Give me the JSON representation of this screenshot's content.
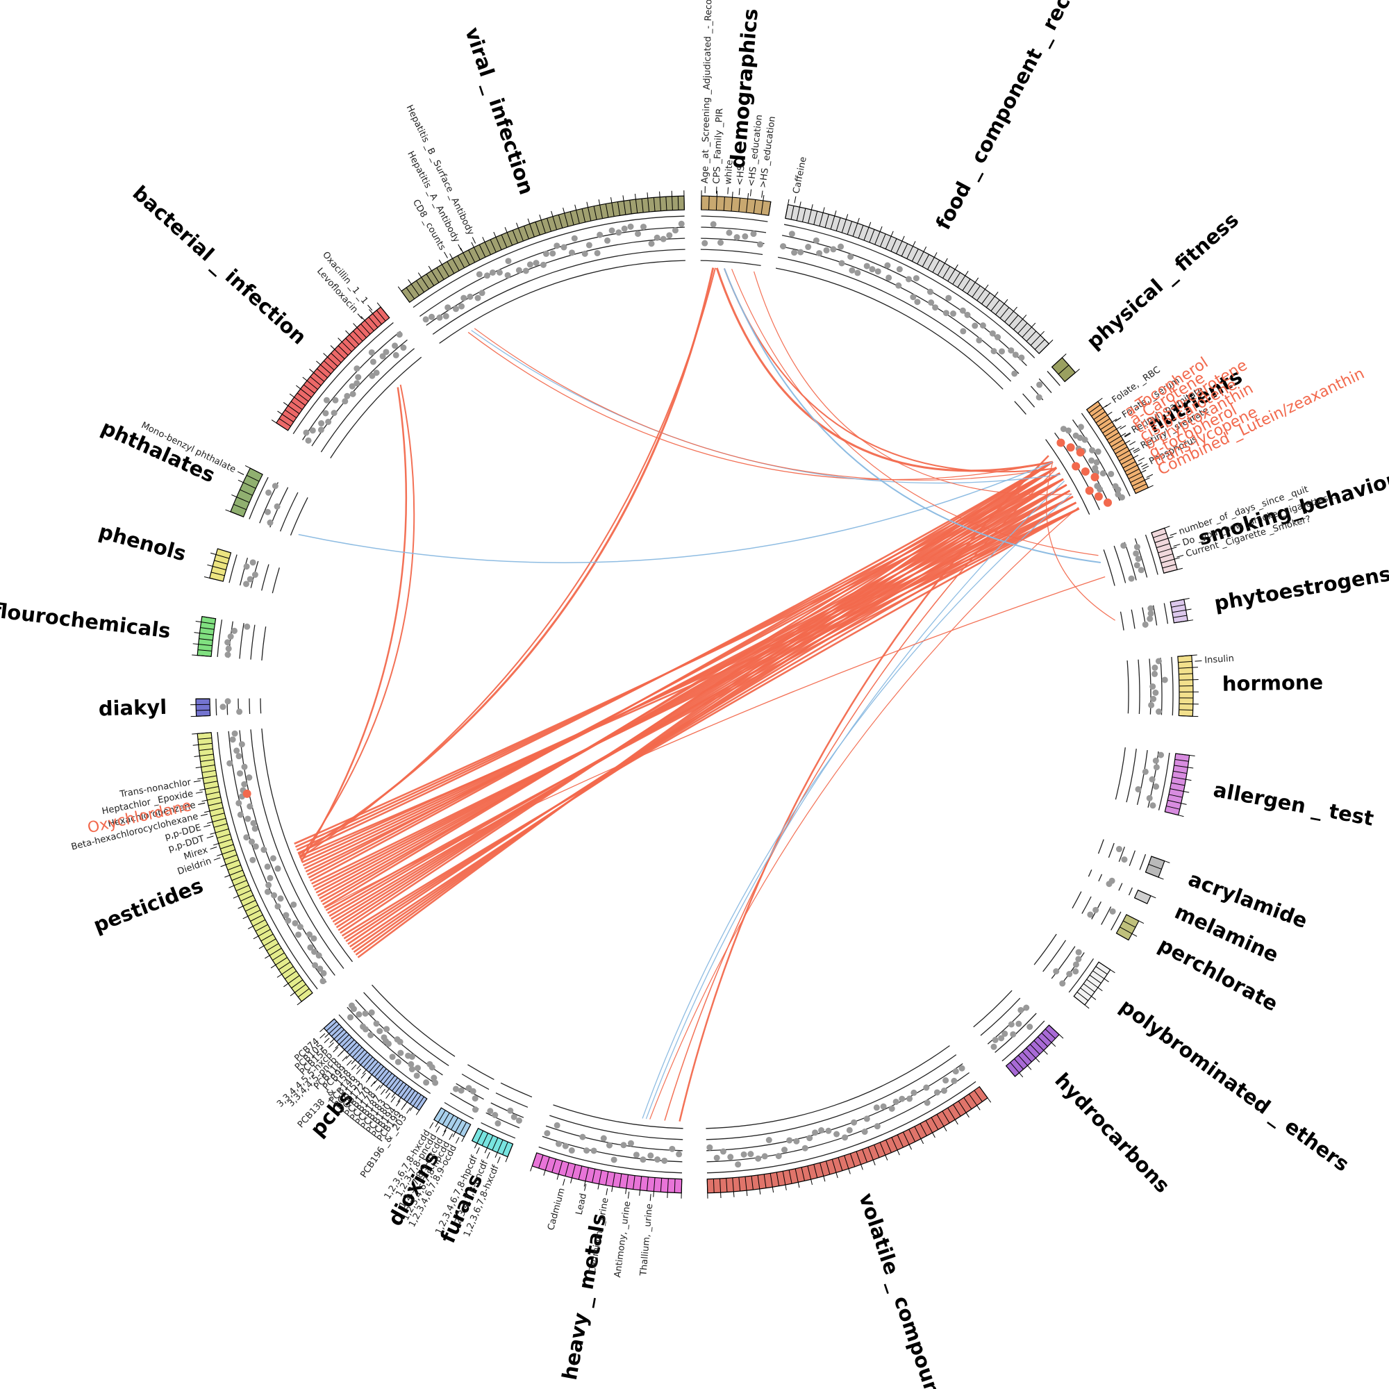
{
  "categories": [
    {
      "name": "demographics",
      "color": "#c8a870"
    },
    {
      "name": "food _ component _ recall",
      "color": "#dcdcdc"
    },
    {
      "name": "physical _ fitness",
      "color": "#9aa060"
    },
    {
      "name": "nutrients",
      "color": "#f0b070"
    },
    {
      "name": "smoking_behavior",
      "color": "#f0d8dc"
    },
    {
      "name": "phytoestrogens",
      "color": "#dcc8ec"
    },
    {
      "name": "hormone",
      "color": "#f2e08c"
    },
    {
      "name": "allergen _ test",
      "color": "#d88ce0"
    },
    {
      "name": "acrylamide",
      "color": "#bababa"
    },
    {
      "name": "melamine",
      "color": "#cfcfcf"
    },
    {
      "name": "perchlorate",
      "color": "#bfc07c"
    },
    {
      "name": "polybrominated _ ethers",
      "color": "#f2f2f2"
    },
    {
      "name": "hydrocarbons",
      "color": "#a86ad6"
    },
    {
      "name": "volatile _ compounds",
      "color": "#e0746a"
    },
    {
      "name": "heavy _ metals",
      "color": "#e874d8"
    },
    {
      "name": "furans",
      "color": "#78e4e0"
    },
    {
      "name": "dioxins",
      "color": "#a8d0ec"
    },
    {
      "name": "pcbs",
      "color": "#a8c0ec"
    },
    {
      "name": "pesticides",
      "color": "#e4ec8c"
    },
    {
      "name": "diakyl",
      "color": "#7474d0"
    },
    {
      "name": "polyflourochemicals",
      "color": "#80e080"
    },
    {
      "name": "phenols",
      "color": "#ece480"
    },
    {
      "name": "phthalates",
      "color": "#90b070"
    },
    {
      "name": "bacterial _ infection",
      "color": "#ec6868"
    },
    {
      "name": "viral _ infection",
      "color": "#a0a070"
    }
  ],
  "variable_labels": {
    "demographics": [
      "Age _at _Screening _Adjudicated _-_Recode",
      "CPS _Family _PIR",
      "white",
      "<HS",
      "<HS _education",
      ">HS _education"
    ],
    "food_component_recall": [
      "Caffeine"
    ],
    "nutrients": [
      "Folate, _RBC",
      "Folate, _serum",
      "Retinyl _palmitate",
      "Retinyl _stearate",
      "Phosphorus"
    ],
    "nutrients_highlighted": [
      "a-Tocopherol",
      "a-Carotene",
      "trans-b-carotene",
      "cis-b-carotene",
      "b-cryptoxanthin",
      "g-tocopherol",
      "trans-lycopene",
      "Combined _Lutein/zeaxanthin"
    ],
    "smoking_behavior": [
      "number _of _days _since _quit",
      "Do _you _now _smoke _cigarettes...",
      "Current _Cigarette _Smoker?"
    ],
    "hormone": [
      "Insulin"
    ],
    "viral_infection": [
      "CD8 _counts",
      "Hepatitis _A _Antibody",
      "Hepatitis _B _Surface _Antibody"
    ],
    "bacterial_infection": [
      "Levofloxacin",
      "Oxacillin _1 _1"
    ],
    "phthalates": [
      "Mono-benzyl phthalate"
    ],
    "pesticides": [
      "Dieldrin",
      "Mirex",
      "p,p-DDT",
      "p,p-DDE",
      "Beta-hexachlorocyclohexane",
      "Hexachlorobenzene",
      "Heptachlor _Epoxide",
      "Trans-nonachlor"
    ],
    "pesticides_highlighted": [
      "Oxychlordane"
    ],
    "pcbs": [
      "PCB196 _& _203",
      "PCB199",
      "PCB194",
      "PCB180",
      "PCB183",
      "PCB187",
      "PCB178",
      "PCB170",
      "PCB172",
      "PCB153",
      "PCB146",
      "PCB138 _& _158",
      "PCB99",
      "PCB118",
      "3,3,4,4,5-pncb",
      "3,3,4,4,5,5-hxcb",
      "PCB156",
      "PCB105",
      "PCB74"
    ],
    "dioxins": [
      "1,2,3,4,6,7,8,9-ocdd",
      "1,2,3,4,6,7,8-hpcdd",
      "1,2,3,7,8,9-hxcdd",
      "1,2,3,7,8-pncdd",
      "1,2,3,6,7,8-hxcdd"
    ],
    "furans": [
      "1,2,3,6,7,8-hxcdf",
      "2,3,4,7,8-pncdf",
      "1,2,3,4,6,7,8-hpcdf"
    ],
    "heavy_metals": [
      "Thallium, _urine",
      "Antimony, _urine",
      "Cadmium, _urine",
      "Lead",
      "Cadmium"
    ]
  },
  "colors": {
    "positive_link": "#f2694d",
    "negative_link": "#88b8e0",
    "dot": "#999999",
    "highlight_dot": "#f2694d"
  }
}
